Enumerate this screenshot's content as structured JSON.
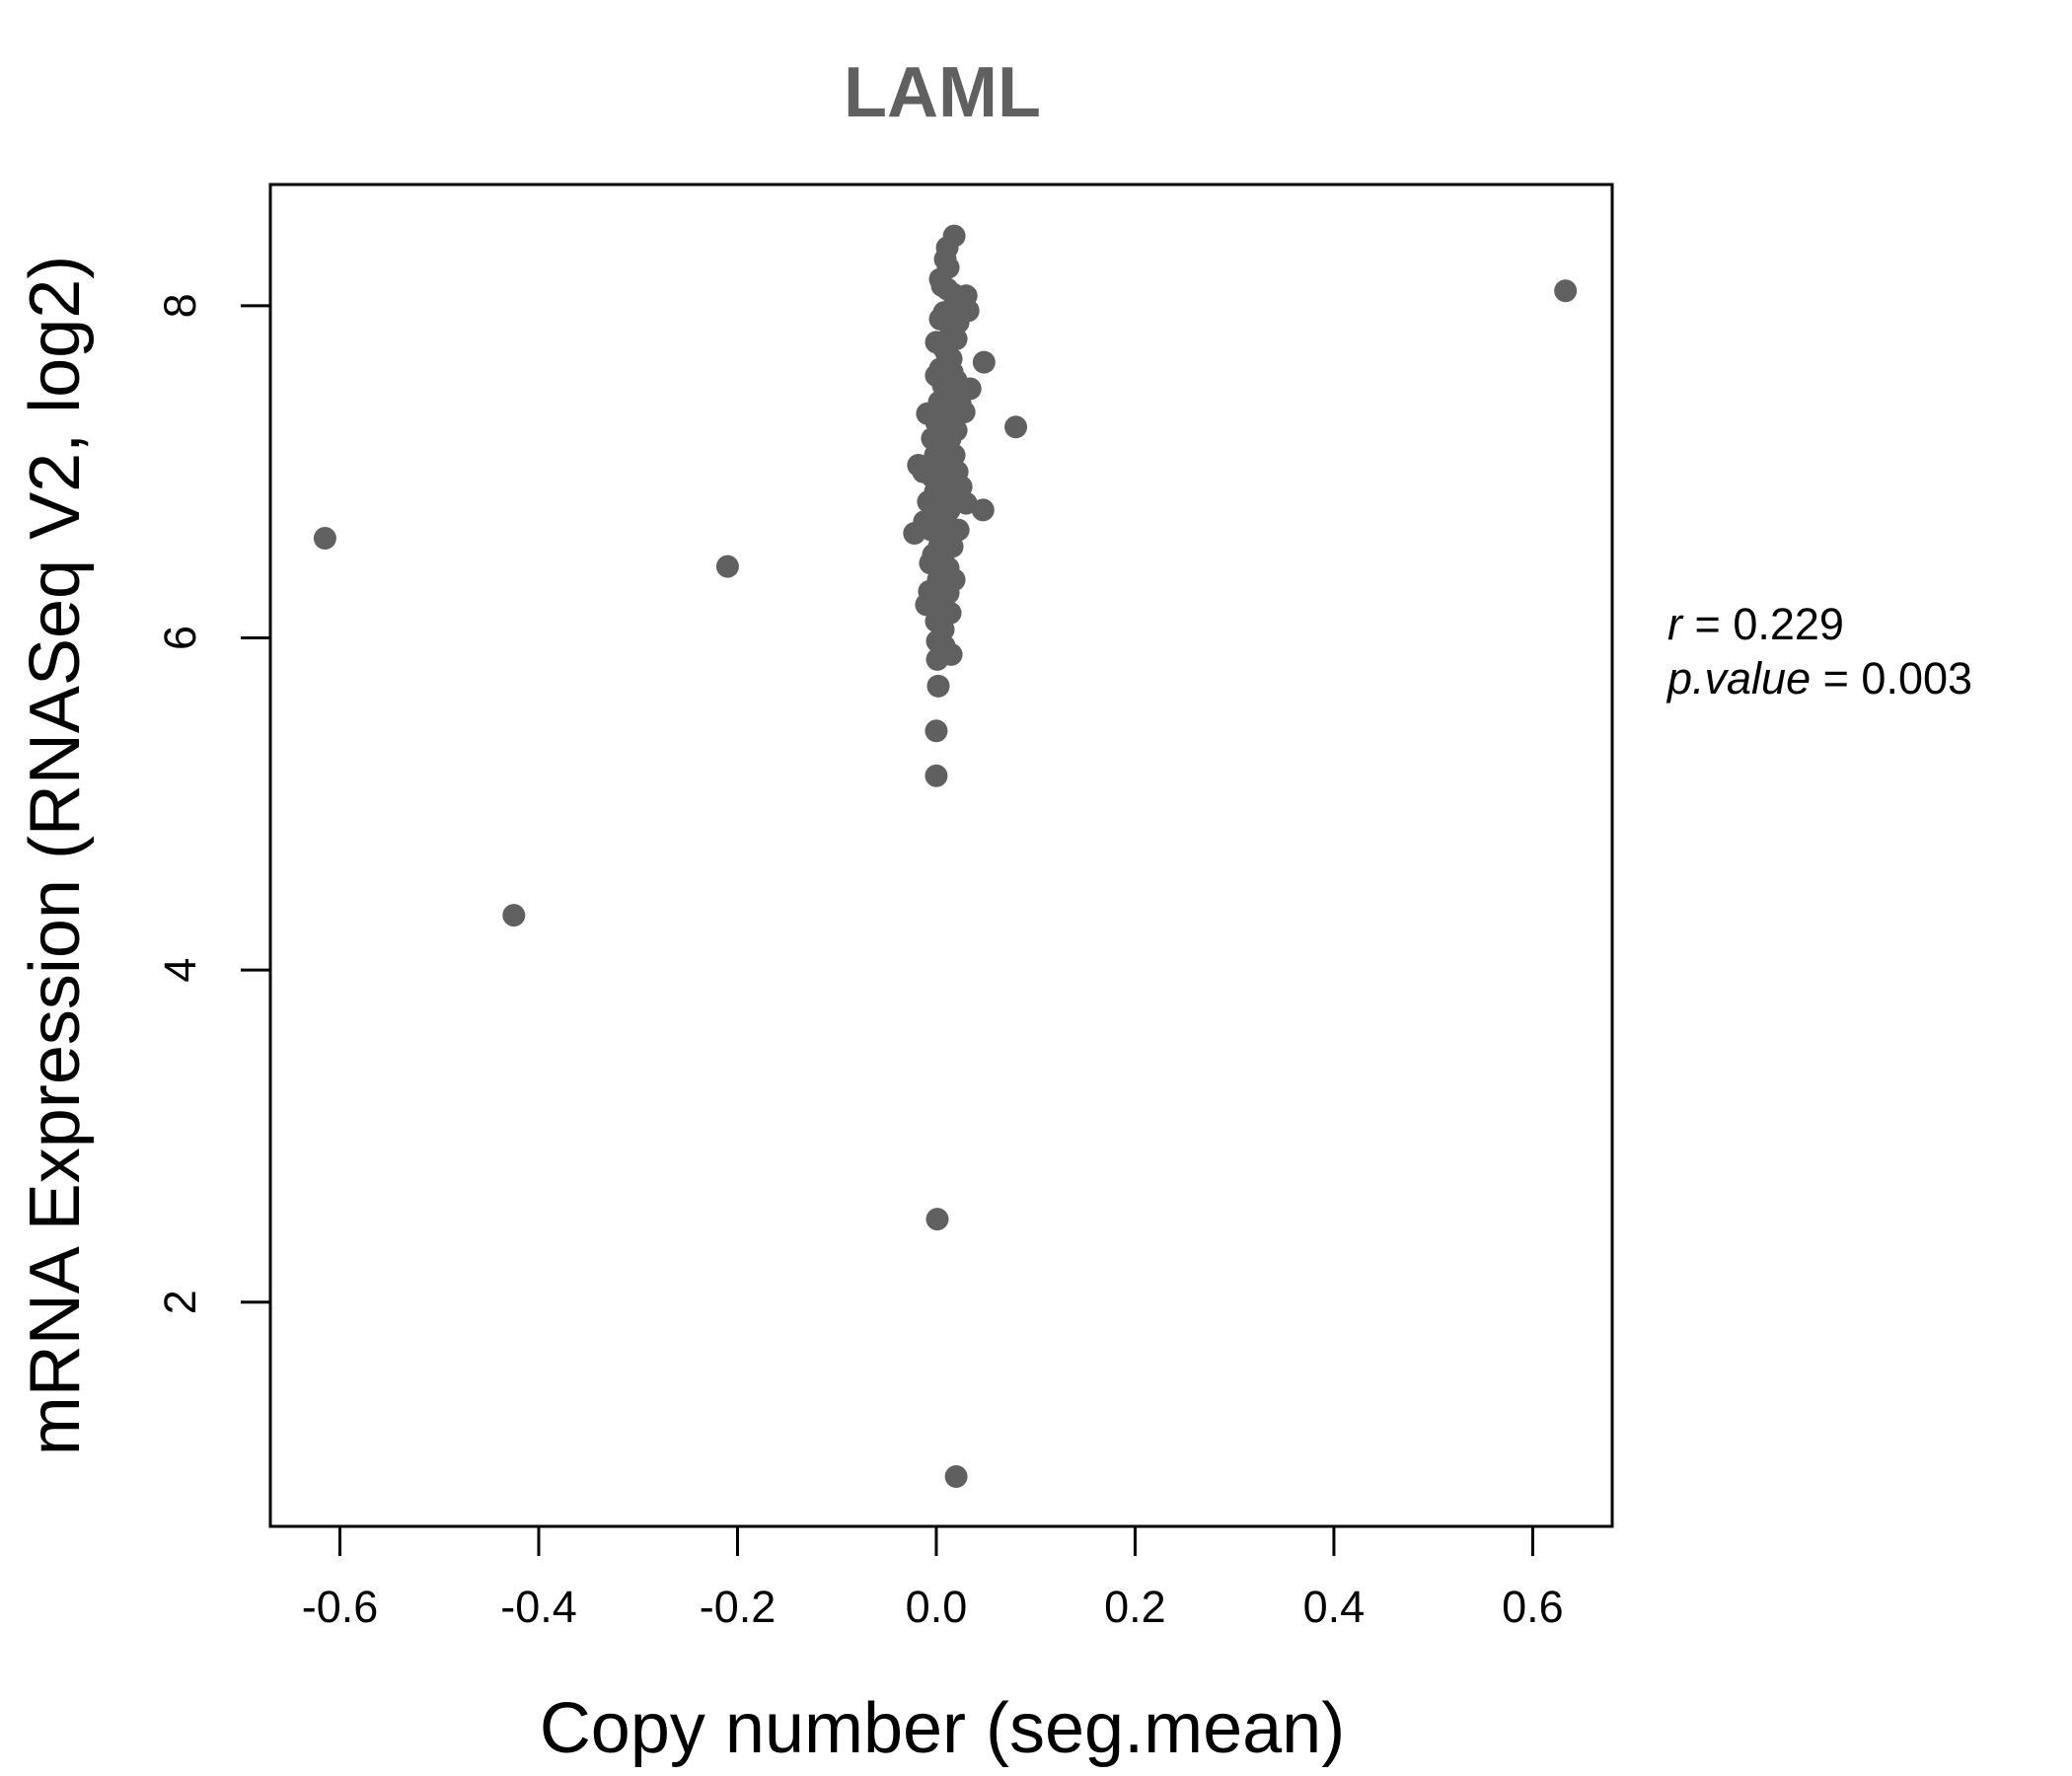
{
  "chart_data": {
    "type": "scatter",
    "title": "LAML",
    "xlabel": "Copy number (seg.mean)",
    "ylabel": "mRNA Expression (RNASeq V2, log2)",
    "xlim": [
      -0.67,
      0.68
    ],
    "ylim": [
      0.65,
      8.73
    ],
    "x_ticks": [
      -0.6,
      -0.4,
      -0.2,
      0.0,
      0.2,
      0.4,
      0.6
    ],
    "x_tick_labels": [
      "-0.6",
      "-0.4",
      "-0.2",
      "0.0",
      "0.2",
      "0.4",
      "0.6"
    ],
    "y_ticks": [
      2,
      4,
      6,
      8
    ],
    "y_tick_labels": [
      "2",
      "4",
      "6",
      "8"
    ],
    "grid": false,
    "point_color": "#606060",
    "stats": {
      "r_label": "r",
      "r_value": "0.229",
      "p_label": "p.value",
      "p_value": "0.003"
    },
    "points": [
      [
        -0.615,
        6.6
      ],
      [
        -0.425,
        4.33
      ],
      [
        -0.21,
        6.43
      ],
      [
        0.633,
        8.09
      ],
      [
        0.08,
        7.27
      ],
      [
        0.048,
        7.66
      ],
      [
        0.047,
        6.77
      ],
      [
        0.034,
        7.5
      ],
      [
        0.032,
        7.97
      ],
      [
        0.03,
        8.06
      ],
      [
        0.03,
        6.81
      ],
      [
        0.028,
        7.36
      ],
      [
        0.025,
        6.91
      ],
      [
        0.024,
        7.41
      ],
      [
        0.022,
        6.65
      ],
      [
        0.024,
        8.0
      ],
      [
        0.018,
        8.42
      ],
      [
        0.02,
        7.8
      ],
      [
        0.02,
        7.55
      ],
      [
        0.02,
        7.25
      ],
      [
        0.018,
        7.1
      ],
      [
        0.017,
        6.85
      ],
      [
        0.016,
        6.55
      ],
      [
        0.015,
        5.9
      ],
      [
        0.014,
        6.15
      ],
      [
        0.012,
        6.27
      ],
      [
        0.012,
        6.42
      ],
      [
        0.012,
        6.62
      ],
      [
        0.013,
        6.77
      ],
      [
        0.013,
        6.98
      ],
      [
        0.014,
        7.2
      ],
      [
        0.014,
        7.45
      ],
      [
        0.015,
        7.68
      ],
      [
        0.016,
        7.9
      ],
      [
        0.017,
        8.07
      ],
      [
        0.012,
        8.23
      ],
      [
        0.011,
        8.35
      ],
      [
        0.01,
        7.72
      ],
      [
        0.01,
        7.33
      ],
      [
        0.01,
        6.93
      ],
      [
        0.009,
        6.71
      ],
      [
        0.008,
        6.52
      ],
      [
        0.008,
        6.3
      ],
      [
        0.008,
        5.95
      ],
      [
        0.007,
        6.05
      ],
      [
        0.007,
        6.38
      ],
      [
        0.006,
        6.6
      ],
      [
        0.006,
        6.82
      ],
      [
        0.006,
        7.05
      ],
      [
        0.006,
        7.28
      ],
      [
        0.007,
        7.52
      ],
      [
        0.007,
        7.75
      ],
      [
        0.008,
        7.96
      ],
      [
        0.006,
        8.12
      ],
      [
        0.004,
        8.16
      ],
      [
        0.004,
        7.92
      ],
      [
        0.004,
        7.62
      ],
      [
        0.003,
        7.42
      ],
      [
        0.003,
        7.15
      ],
      [
        0.003,
        6.95
      ],
      [
        0.003,
        6.75
      ],
      [
        0.003,
        6.55
      ],
      [
        0.002,
        6.35
      ],
      [
        0.002,
        6.18
      ],
      [
        0.001,
        5.98
      ],
      [
        0.001,
        5.87
      ],
      [
        0.002,
        5.71
      ],
      [
        0.0,
        5.44
      ],
      [
        0.0,
        5.17
      ],
      [
        0.001,
        2.5
      ],
      [
        0.02,
        0.95
      ],
      [
        0.0,
        6.1
      ],
      [
        0.0,
        6.25
      ],
      [
        0.0,
        6.45
      ],
      [
        0.0,
        6.68
      ],
      [
        -0.001,
        6.88
      ],
      [
        -0.001,
        7.1
      ],
      [
        0.0,
        7.3
      ],
      [
        0.0,
        7.58
      ],
      [
        0.0,
        7.78
      ],
      [
        -0.002,
        6.22
      ],
      [
        -0.003,
        6.5
      ],
      [
        -0.003,
        6.78
      ],
      [
        -0.004,
        6.97
      ],
      [
        -0.004,
        7.2
      ],
      [
        -0.005,
        6.65
      ],
      [
        -0.006,
        6.45
      ],
      [
        -0.007,
        6.28
      ],
      [
        -0.008,
        6.82
      ],
      [
        -0.009,
        7.35
      ],
      [
        -0.01,
        6.2
      ],
      [
        -0.012,
        6.7
      ],
      [
        -0.013,
        7.0
      ],
      [
        -0.018,
        7.04
      ],
      [
        -0.022,
        6.63
      ],
      [
        0.009,
        8.28
      ],
      [
        0.011,
        8.1
      ],
      [
        0.014,
        7.82
      ],
      [
        0.016,
        7.6
      ],
      [
        0.013,
        7.38
      ],
      [
        0.011,
        7.14
      ],
      [
        0.009,
        6.9
      ],
      [
        0.009,
        6.44
      ],
      [
        0.005,
        6.9
      ],
      [
        0.005,
        7.4
      ],
      [
        0.004,
        6.4
      ],
      [
        0.018,
        6.35
      ],
      [
        0.021,
        7.0
      ],
      [
        0.022,
        7.9
      ],
      [
        0.015,
        6.62
      ]
    ]
  }
}
